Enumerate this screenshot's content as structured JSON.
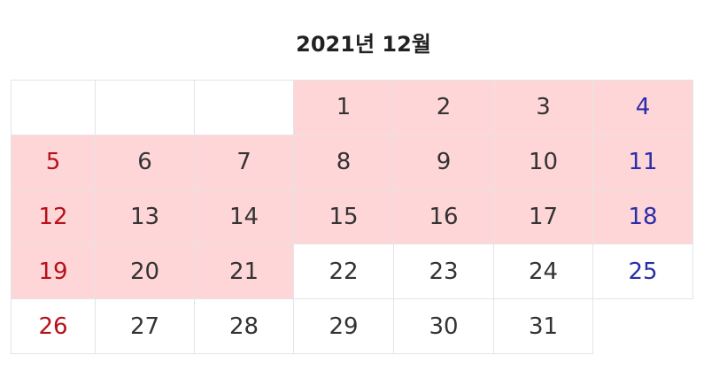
{
  "title": "2021년 12월",
  "weeks": [
    [
      null,
      null,
      null,
      1,
      2,
      3,
      4
    ],
    [
      5,
      6,
      7,
      8,
      9,
      10,
      11
    ],
    [
      12,
      13,
      14,
      15,
      16,
      17,
      18
    ],
    [
      19,
      20,
      21,
      22,
      23,
      24,
      25
    ],
    [
      26,
      27,
      28,
      29,
      30,
      31,
      null
    ]
  ],
  "highlight": {
    "from": 1,
    "to": 21,
    "color": "#ffd6d8"
  },
  "sunday_color": "#b5121b",
  "saturday_color": "#2b2ea8"
}
